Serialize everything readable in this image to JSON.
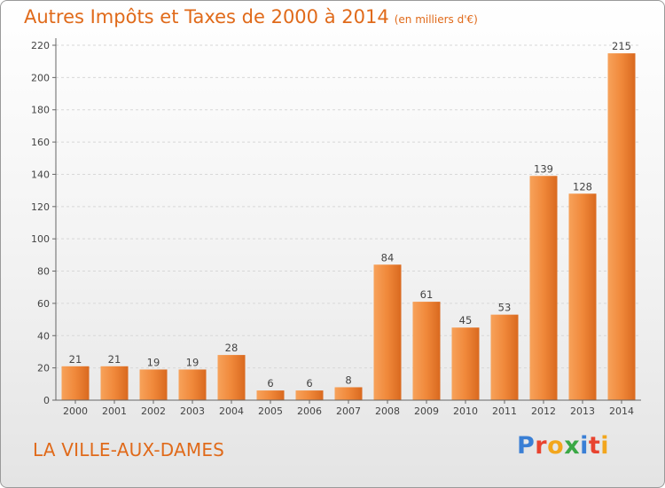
{
  "chart_data": {
    "type": "bar",
    "title": "Autres Impôts et Taxes de 2000 à 2014",
    "subtitle": "(en milliers d'€)",
    "categories": [
      "2000",
      "2001",
      "2002",
      "2003",
      "2004",
      "2005",
      "2006",
      "2007",
      "2008",
      "2009",
      "2010",
      "2011",
      "2012",
      "2013",
      "2014"
    ],
    "values": [
      21,
      21,
      19,
      19,
      28,
      6,
      6,
      8,
      84,
      61,
      45,
      53,
      139,
      128,
      215
    ],
    "xlabel": "",
    "ylabel": "",
    "ylim": [
      0,
      220
    ],
    "yticks": [
      0,
      20,
      40,
      60,
      80,
      100,
      120,
      140,
      160,
      180,
      200,
      220
    ],
    "grid": true,
    "bar_color": "#f0883a"
  },
  "footer": {
    "town": "LA VILLE-AUX-DAMES",
    "logo_letters": [
      {
        "ch": "P",
        "color": "#3a7fd5"
      },
      {
        "ch": "r",
        "color": "#e8432f"
      },
      {
        "ch": "o",
        "color": "#f2a61d"
      },
      {
        "ch": "x",
        "color": "#3aa845"
      },
      {
        "ch": "i",
        "color": "#3a7fd5"
      },
      {
        "ch": "t",
        "color": "#e8432f"
      },
      {
        "ch": "i",
        "color": "#f2a61d"
      }
    ]
  }
}
